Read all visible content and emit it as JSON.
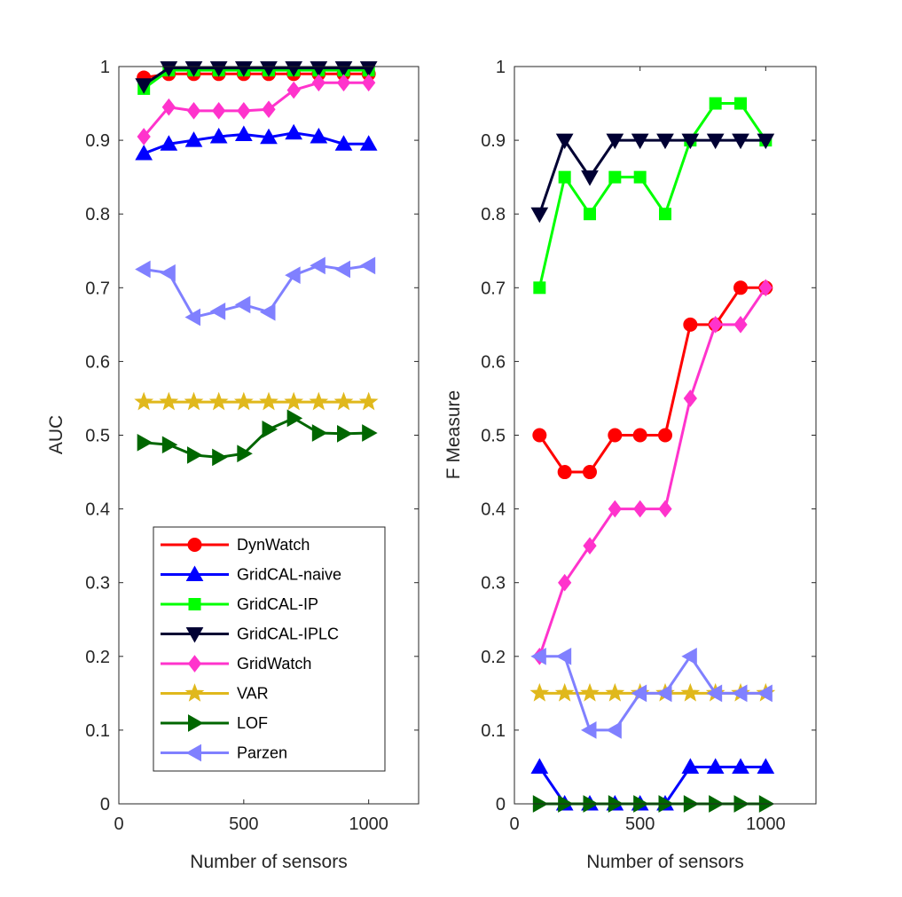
{
  "chart_data": [
    {
      "type": "line",
      "ylabel": "AUC",
      "xlabel": "Number of sensors",
      "xlim": [
        0,
        1200
      ],
      "ylim": [
        0,
        1
      ],
      "xticks": [
        "0",
        "500",
        "1000"
      ],
      "yticks": [
        "0",
        "0.1",
        "0.2",
        "0.3",
        "0.4",
        "0.5",
        "0.6",
        "0.7",
        "0.8",
        "0.9",
        "1"
      ],
      "legend_position": "lower-left",
      "x": [
        100,
        200,
        300,
        400,
        500,
        600,
        700,
        800,
        900,
        1000
      ],
      "series": [
        {
          "name": "DynWatch",
          "color": "#ff0000",
          "marker": "circle",
          "values": [
            0.985,
            0.99,
            0.99,
            0.99,
            0.99,
            0.99,
            0.99,
            0.99,
            0.99,
            0.99
          ]
        },
        {
          "name": "GridCAL-naive",
          "color": "#0000ff",
          "marker": "triangle-up",
          "values": [
            0.882,
            0.895,
            0.9,
            0.905,
            0.908,
            0.904,
            0.91,
            0.905,
            0.895,
            0.895
          ]
        },
        {
          "name": "GridCAL-IP",
          "color": "#00ff00",
          "marker": "square",
          "values": [
            0.97,
            0.995,
            0.995,
            0.995,
            0.995,
            0.995,
            0.995,
            0.995,
            0.995,
            0.995
          ]
        },
        {
          "name": "GridCAL-IPLC",
          "color": "#000033",
          "marker": "triangle-down",
          "values": [
            0.975,
            0.998,
            0.998,
            0.998,
            0.998,
            0.998,
            0.998,
            0.998,
            0.998,
            0.998
          ]
        },
        {
          "name": "GridWatch",
          "color": "#ff33cc",
          "marker": "diamond",
          "values": [
            0.905,
            0.945,
            0.94,
            0.94,
            0.94,
            0.942,
            0.968,
            0.978,
            0.978,
            0.978
          ]
        },
        {
          "name": "VAR",
          "color": "#e0b81c",
          "marker": "star",
          "values": [
            0.545,
            0.545,
            0.545,
            0.545,
            0.545,
            0.545,
            0.545,
            0.545,
            0.545,
            0.545
          ]
        },
        {
          "name": "LOF",
          "color": "#006600",
          "marker": "triangle-right",
          "values": [
            0.49,
            0.487,
            0.473,
            0.47,
            0.475,
            0.508,
            0.523,
            0.503,
            0.502,
            0.503
          ]
        },
        {
          "name": "Parzen",
          "color": "#8080ff",
          "marker": "triangle-left",
          "values": [
            0.725,
            0.72,
            0.66,
            0.668,
            0.677,
            0.667,
            0.717,
            0.73,
            0.725,
            0.73
          ]
        }
      ]
    },
    {
      "type": "line",
      "ylabel": "F Measure",
      "xlabel": "Number of sensors",
      "xlim": [
        0,
        1200
      ],
      "ylim": [
        0,
        1
      ],
      "xticks": [
        "0",
        "500",
        "1000"
      ],
      "yticks": [
        "0",
        "0.1",
        "0.2",
        "0.3",
        "0.4",
        "0.5",
        "0.6",
        "0.7",
        "0.8",
        "0.9",
        "1"
      ],
      "x": [
        100,
        200,
        300,
        400,
        500,
        600,
        700,
        800,
        900,
        1000
      ],
      "series": [
        {
          "name": "DynWatch",
          "color": "#ff0000",
          "marker": "circle",
          "values": [
            0.5,
            0.45,
            0.45,
            0.5,
            0.5,
            0.5,
            0.65,
            0.65,
            0.7,
            0.7
          ]
        },
        {
          "name": "GridCAL-naive",
          "color": "#0000ff",
          "marker": "triangle-up",
          "values": [
            0.05,
            0,
            0,
            0,
            0,
            0,
            0.05,
            0.05,
            0.05,
            0.05
          ]
        },
        {
          "name": "GridCAL-IP",
          "color": "#00ff00",
          "marker": "square",
          "values": [
            0.7,
            0.85,
            0.8,
            0.85,
            0.85,
            0.8,
            0.9,
            0.95,
            0.95,
            0.9
          ]
        },
        {
          "name": "GridCAL-IPLC",
          "color": "#000033",
          "marker": "triangle-down",
          "values": [
            0.8,
            0.9,
            0.85,
            0.9,
            0.9,
            0.9,
            0.9,
            0.9,
            0.9,
            0.9
          ]
        },
        {
          "name": "GridWatch",
          "color": "#ff33cc",
          "marker": "diamond",
          "values": [
            0.2,
            0.3,
            0.35,
            0.4,
            0.4,
            0.4,
            0.55,
            0.65,
            0.65,
            0.7
          ]
        },
        {
          "name": "VAR",
          "color": "#e0b81c",
          "marker": "star",
          "values": [
            0.15,
            0.15,
            0.15,
            0.15,
            0.15,
            0.15,
            0.15,
            0.15,
            0.15,
            0.15
          ]
        },
        {
          "name": "LOF",
          "color": "#006600",
          "marker": "triangle-right",
          "values": [
            0,
            0,
            0,
            0,
            0,
            0,
            0,
            0,
            0,
            0
          ]
        },
        {
          "name": "Parzen",
          "color": "#8080ff",
          "marker": "triangle-left",
          "values": [
            0.2,
            0.2,
            0.1,
            0.1,
            0.15,
            0.15,
            0.2,
            0.15,
            0.15,
            0.15
          ]
        }
      ]
    }
  ]
}
